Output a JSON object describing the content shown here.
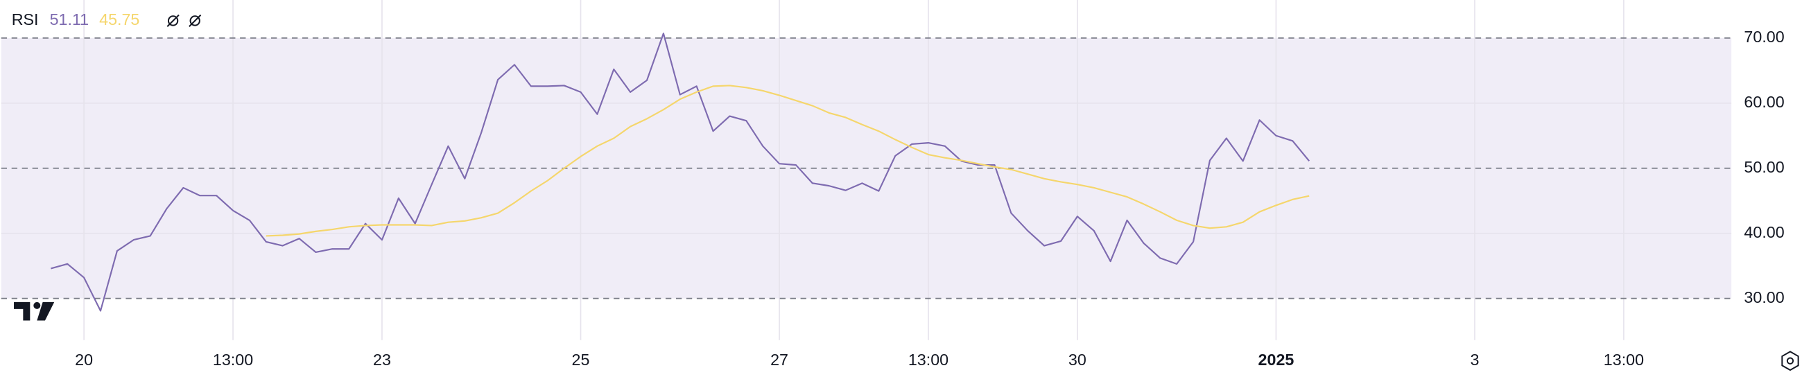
{
  "chart_data": {
    "type": "line",
    "title": "RSI",
    "legend": "top-left",
    "x": [
      0,
      1,
      2,
      3,
      4,
      5,
      6,
      7,
      8,
      9,
      10,
      11,
      12,
      13,
      14,
      15,
      16,
      17,
      18,
      19,
      20,
      21,
      22,
      23,
      24,
      25,
      26,
      27,
      28,
      29,
      30,
      31,
      32,
      33,
      34,
      35,
      36,
      37,
      38,
      39,
      40,
      41,
      42,
      43,
      44,
      45,
      46,
      47,
      48,
      49,
      50,
      51,
      52,
      53,
      54,
      55,
      56,
      57,
      58,
      59,
      60,
      61,
      62,
      63,
      64,
      65,
      66,
      67,
      68,
      69,
      70,
      71,
      72,
      73,
      74,
      75,
      76
    ],
    "series": [
      {
        "name": "51.11",
        "color": "#7e6bb0",
        "values": [
          34.6,
          35.3,
          33.2,
          28.1,
          37.3,
          39.0,
          39.6,
          43.8,
          47.0,
          45.8,
          45.8,
          43.5,
          42.0,
          38.7,
          38.1,
          39.2,
          37.1,
          37.6,
          37.6,
          41.5,
          39.0,
          45.4,
          41.5,
          47.5,
          53.4,
          48.4,
          55.5,
          63.6,
          65.9,
          62.6,
          62.6,
          62.7,
          61.7,
          58.3,
          65.2,
          61.7,
          63.5,
          70.7,
          61.3,
          62.6,
          55.7,
          58.0,
          57.3,
          53.4,
          50.7,
          50.5,
          47.7,
          47.3,
          46.6,
          47.7,
          46.5,
          51.9,
          53.7,
          53.9,
          53.4,
          51.1,
          50.5,
          50.5,
          43.1,
          40.4,
          38.1,
          38.8,
          42.6,
          40.4,
          35.7,
          42.0,
          38.5,
          36.2,
          35.3,
          38.7,
          51.2,
          54.6,
          51.1,
          57.4,
          55.0,
          54.2,
          51.11
        ]
      },
      {
        "name": "45.75",
        "color": "#f5d66c",
        "values": [
          null,
          null,
          null,
          null,
          null,
          null,
          null,
          null,
          null,
          null,
          null,
          null,
          null,
          39.6,
          39.7,
          39.9,
          40.3,
          40.6,
          41.0,
          41.2,
          41.3,
          41.3,
          41.3,
          41.2,
          41.7,
          41.9,
          42.4,
          43.1,
          44.7,
          46.5,
          48.1,
          50.0,
          51.8,
          53.4,
          54.6,
          56.4,
          57.6,
          59.0,
          60.6,
          61.7,
          62.6,
          62.7,
          62.4,
          61.9,
          61.2,
          60.4,
          59.6,
          58.5,
          57.8,
          56.7,
          55.7,
          54.4,
          53.2,
          52.1,
          51.6,
          51.2,
          50.7,
          50.2,
          49.8,
          49.1,
          48.4,
          47.9,
          47.5,
          47.0,
          46.3,
          45.6,
          44.5,
          43.3,
          42.0,
          41.2,
          40.8,
          41.0,
          41.7,
          43.3,
          44.3,
          45.2,
          45.75
        ]
      }
    ],
    "xlim": [
      -3,
      101.5
    ],
    "xticks": [
      {
        "value": 2,
        "label": "20"
      },
      {
        "value": 11,
        "label": "13:00"
      },
      {
        "value": 20,
        "label": "23"
      },
      {
        "value": 32,
        "label": "25"
      },
      {
        "value": 44,
        "label": "27"
      },
      {
        "value": 53,
        "label": "13:00"
      },
      {
        "value": 62,
        "label": "30"
      },
      {
        "value": 74,
        "label": "2025"
      },
      {
        "value": 86,
        "label": "3"
      },
      {
        "value": 95,
        "label": "13:00"
      }
    ],
    "ylim": [
      23.6,
      75.84
    ],
    "yticks": [
      {
        "value": 30,
        "label": "30.00"
      },
      {
        "value": 40,
        "label": "40.00"
      },
      {
        "value": 50,
        "label": "50.00"
      },
      {
        "value": 60,
        "label": "60.00"
      },
      {
        "value": 70,
        "label": "70.00"
      }
    ],
    "band": [
      30,
      70
    ],
    "band_color": "#f0edf7",
    "hlines": [
      30,
      50,
      70
    ],
    "grid": true
  }
}
